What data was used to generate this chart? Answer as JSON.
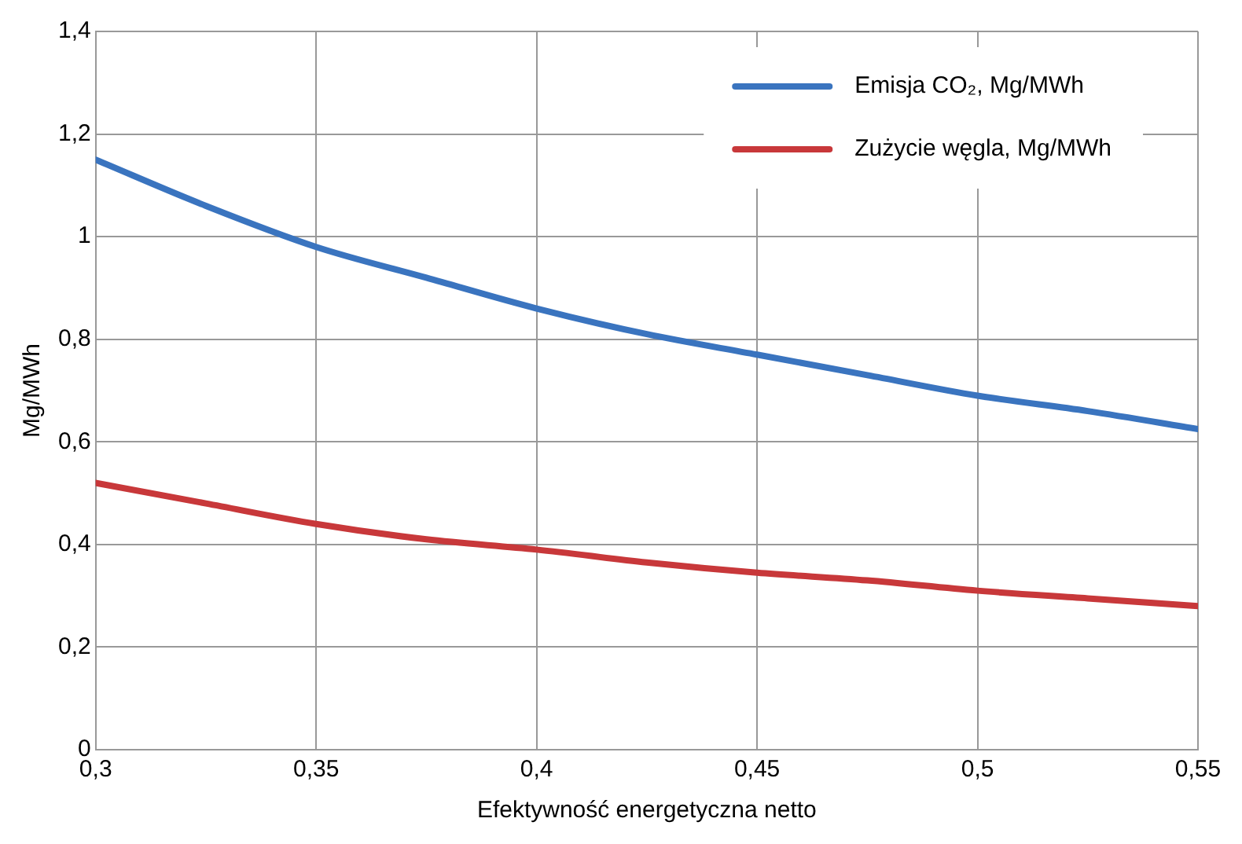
{
  "chart_data": {
    "type": "line",
    "xlabel": "Efektywność energetyczna netto",
    "ylabel": "Mg/MWh",
    "x": [
      0.3,
      0.325,
      0.35,
      0.375,
      0.4,
      0.425,
      0.45,
      0.475,
      0.5,
      0.525,
      0.55
    ],
    "series": [
      {
        "name": "Emisja CO₂, Mg/MWh",
        "color": "#3a74bf",
        "values": [
          1.15,
          1.06,
          0.98,
          0.92,
          0.86,
          0.81,
          0.77,
          0.73,
          0.69,
          0.66,
          0.625
        ]
      },
      {
        "name": "Zużycie węgla, Mg/MWh",
        "color": "#c8383a",
        "values": [
          0.52,
          0.48,
          0.44,
          0.41,
          0.39,
          0.365,
          0.345,
          0.33,
          0.31,
          0.295,
          0.28
        ]
      }
    ],
    "xlim": [
      0.3,
      0.55
    ],
    "ylim": [
      0,
      1.4
    ],
    "xticks": [
      {
        "value": 0.3,
        "label": "0,3"
      },
      {
        "value": 0.35,
        "label": "0,35"
      },
      {
        "value": 0.4,
        "label": "0,4"
      },
      {
        "value": 0.45,
        "label": "0,45"
      },
      {
        "value": 0.5,
        "label": "0,5"
      },
      {
        "value": 0.55,
        "label": "0,55"
      }
    ],
    "yticks": [
      0,
      {
        "value": 0.2,
        "label": "0,2"
      },
      {
        "value": 0.4,
        "label": "0,4"
      },
      {
        "value": 0.6,
        "label": "0,6"
      },
      {
        "value": 0.8,
        "label": "0,8"
      },
      1,
      {
        "value": 1.2,
        "label": "1,2"
      },
      {
        "value": 1.4,
        "label": "1,4"
      }
    ],
    "grid": true,
    "legend": "top right",
    "marker": "none",
    "line_style": "solid"
  }
}
